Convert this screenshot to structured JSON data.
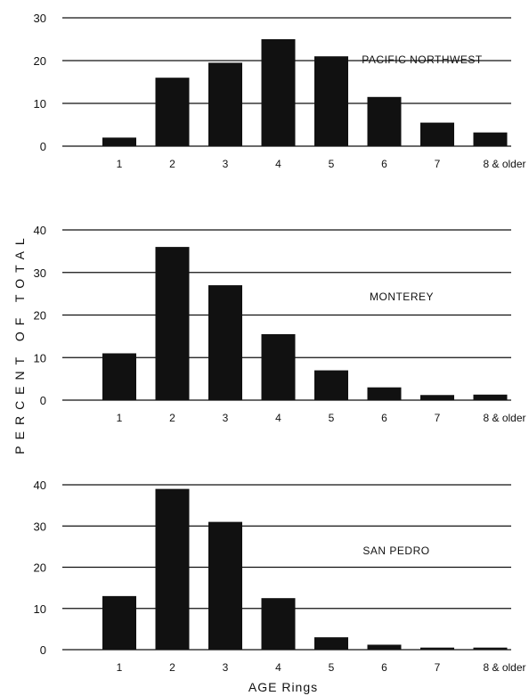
{
  "chart_data": [
    {
      "type": "bar",
      "title": "PACIFIC NORTHWEST",
      "categories": [
        "1",
        "2",
        "3",
        "4",
        "5",
        "6",
        "7",
        "8 & older"
      ],
      "values": [
        2,
        16,
        19.5,
        25,
        21,
        11.5,
        5.5,
        3.2
      ],
      "ylim": [
        0,
        30
      ],
      "yticks": [
        "0",
        "10",
        "20",
        "30"
      ],
      "grid": true,
      "bar_color": "#111111"
    },
    {
      "type": "bar",
      "title": "MONTEREY",
      "categories": [
        "1",
        "2",
        "3",
        "4",
        "5",
        "6",
        "7",
        "8 & older"
      ],
      "values": [
        11,
        36,
        27,
        15.5,
        7,
        3,
        1.2,
        1.3
      ],
      "ylim": [
        0,
        40
      ],
      "yticks": [
        "0",
        "10",
        "20",
        "30",
        "40"
      ],
      "grid": true,
      "bar_color": "#111111"
    },
    {
      "type": "bar",
      "title": "SAN PEDRO",
      "categories": [
        "1",
        "2",
        "3",
        "4",
        "5",
        "6",
        "7",
        "8 & older"
      ],
      "values": [
        13,
        39,
        31,
        12.5,
        3,
        1.2,
        0.5,
        0.5
      ],
      "ylim": [
        0,
        40
      ],
      "yticks": [
        "0",
        "10",
        "20",
        "30",
        "40"
      ],
      "grid": true,
      "bar_color": "#111111"
    }
  ],
  "ylabel": "PERCENT OF TOTAL",
  "xlabel": "AGE  Rings"
}
